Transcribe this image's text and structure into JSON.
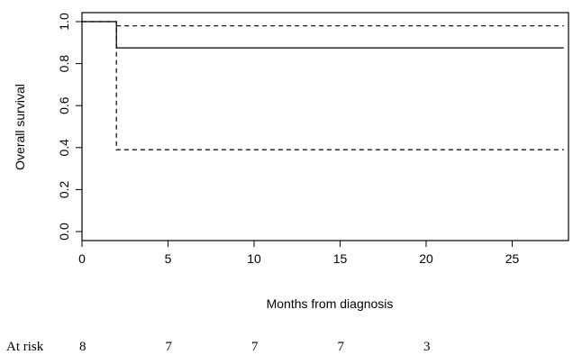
{
  "chart_data": {
    "type": "line",
    "title": "",
    "xlabel": "Months from diagnosis",
    "ylabel": "Overall survival",
    "xlim": [
      0,
      28
    ],
    "ylim": [
      0,
      1.0
    ],
    "x_ticks": [
      "0",
      "5",
      "10",
      "15",
      "20",
      "25"
    ],
    "y_ticks": [
      "0.0",
      "0.2",
      "0.4",
      "0.6",
      "0.8",
      "1.0"
    ],
    "grid": false,
    "legend": "none",
    "series": [
      {
        "style": "solid",
        "x": [
          0,
          2,
          2,
          28
        ],
        "y": [
          1.0,
          1.0,
          0.875,
          0.875
        ]
      },
      {
        "style": "dashed",
        "x": [
          0,
          2,
          2,
          28
        ],
        "y": [
          1.0,
          1.0,
          0.39,
          0.39
        ]
      },
      {
        "style": "dashed",
        "x": [
          2,
          28
        ],
        "y": [
          0.98,
          0.98
        ]
      }
    ]
  },
  "at_risk": {
    "label": "At risk",
    "times": [
      0,
      5,
      10,
      15,
      20
    ],
    "counts": [
      "8",
      "7",
      "7",
      "7",
      "3"
    ]
  }
}
